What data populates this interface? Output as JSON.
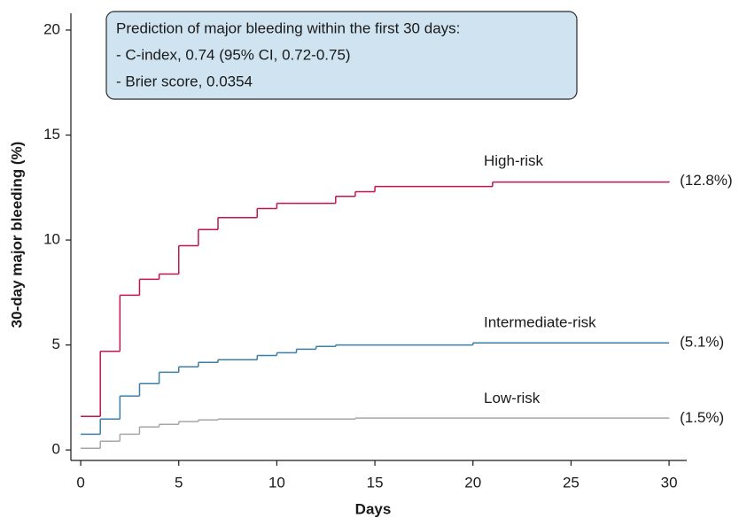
{
  "chart_data": {
    "type": "step",
    "ylabel": "30-day major bleeding (%)",
    "xlabel": "Days",
    "annotation": [
      "Prediction of major bleeding within the first 30 days:",
      "- C-index, 0.74 (95% CI, 0.72-0.75)",
      "- Brier score, 0.0354"
    ],
    "xlim": [
      -0.5,
      30.9
    ],
    "ylim": [
      -0.5,
      20.8
    ],
    "xticks": [
      0,
      5,
      10,
      15,
      20,
      25,
      30
    ],
    "yticks": [
      0,
      5,
      10,
      15,
      20
    ],
    "series": [
      {
        "name": "High-risk",
        "color": "#c0154d",
        "end_label": "(12.8%)",
        "x": [
          0,
          1,
          2,
          3,
          4,
          5,
          6,
          7,
          9,
          10,
          13,
          14,
          15,
          21,
          30
        ],
        "values": [
          1.6,
          4.7,
          7.37,
          8.13,
          8.38,
          9.73,
          10.5,
          11.07,
          11.5,
          11.75,
          12.08,
          12.3,
          12.55,
          12.76,
          12.8
        ]
      },
      {
        "name": "Intermediate-risk",
        "color": "#3d7ea6",
        "end_label": "(5.1%)",
        "x": [
          0,
          1,
          2,
          3,
          4,
          5,
          6,
          7,
          9,
          10,
          11,
          12,
          13,
          20,
          30
        ],
        "values": [
          0.75,
          1.47,
          2.57,
          3.16,
          3.7,
          3.96,
          4.17,
          4.3,
          4.5,
          4.63,
          4.8,
          4.93,
          5.0,
          5.1,
          5.1
        ]
      },
      {
        "name": "Low-risk",
        "color": "#a6a6a6",
        "end_label": "(1.5%)",
        "x": [
          0,
          1,
          2,
          3,
          4,
          5,
          6,
          7,
          14,
          30
        ],
        "values": [
          0.08,
          0.42,
          0.75,
          1.1,
          1.22,
          1.35,
          1.43,
          1.47,
          1.52,
          1.5
        ]
      }
    ]
  }
}
